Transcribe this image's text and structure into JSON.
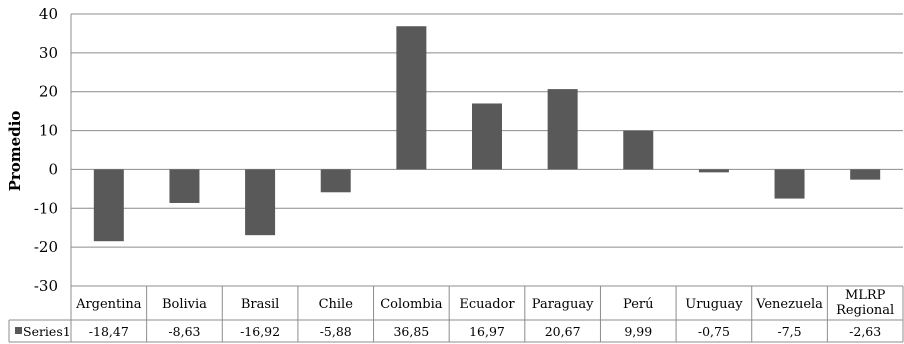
{
  "chart_data": {
    "type": "bar",
    "ylabel": "Promedio",
    "xlabel": "",
    "ylim": [
      -30,
      40
    ],
    "yticks": [
      40,
      30,
      20,
      10,
      0,
      -10,
      -20,
      -30
    ],
    "grid": true,
    "legend_position": "data-table",
    "categories": [
      [
        "Argentina"
      ],
      [
        "Bolivia"
      ],
      [
        "Brasil"
      ],
      [
        "Chile"
      ],
      [
        "Colombia"
      ],
      [
        "Ecuador"
      ],
      [
        "Paraguay"
      ],
      [
        "Perú"
      ],
      [
        "Uruguay"
      ],
      [
        "Venezuela"
      ],
      [
        "MLRP",
        "Regional"
      ]
    ],
    "series": [
      {
        "name": "Series1",
        "color": "#595959",
        "values": [
          -18.47,
          -8.63,
          -16.92,
          -5.88,
          36.85,
          16.97,
          20.67,
          9.99,
          -0.75,
          -7.5,
          -2.63
        ],
        "labels": [
          "-18,47",
          "-8,63",
          "-16,92",
          "-5,88",
          "36,85",
          "16,97",
          "20,67",
          "9,99",
          "-0,75",
          "-7,5",
          "-2,63"
        ]
      }
    ]
  }
}
